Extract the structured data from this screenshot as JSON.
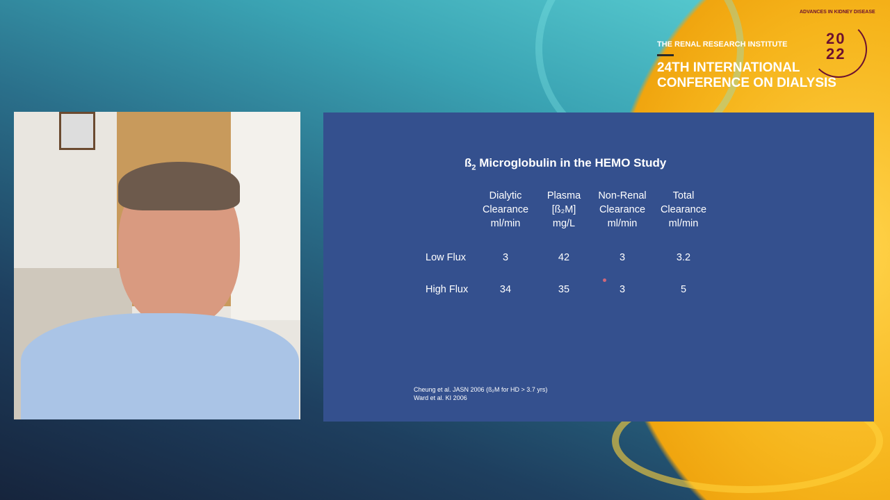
{
  "branding": {
    "institute": "THE RENAL RESEARCH INSTITUTE",
    "conference_line1": "24TH INTERNATIONAL",
    "conference_line2": "CONFERENCE ON DIALYSIS",
    "year_top": "20",
    "year_bottom": "22",
    "seal_text": "ADVANCES IN KIDNEY DISEASE",
    "colors": {
      "yellow": "#f6b51c",
      "maroon": "#6b1030",
      "slide": "#34508e"
    }
  },
  "slide": {
    "title": "ß",
    "title_sub": "2",
    "title_rest": " Microglobulin in the HEMO Study",
    "headers": [
      [
        "Dialytic",
        "Clearance",
        "ml/min"
      ],
      [
        "Plasma",
        "[ß₂M]",
        "mg/L"
      ],
      [
        "Non-Renal",
        "Clearance",
        "ml/min"
      ],
      [
        "Total",
        "Clearance",
        "ml/min"
      ]
    ],
    "rows": [
      {
        "label": "Low Flux",
        "values": [
          "3",
          "42",
          "3",
          "3.2"
        ]
      },
      {
        "label": "High Flux",
        "values": [
          "34",
          "35",
          "3",
          "5"
        ]
      }
    ],
    "footnotes": [
      "Cheung et al.  JASN 2006 (ß₂M for HD > 3.7 yrs)",
      "Ward et al.  KI 2006"
    ]
  },
  "video": {
    "description_icon": "speaker-video"
  }
}
